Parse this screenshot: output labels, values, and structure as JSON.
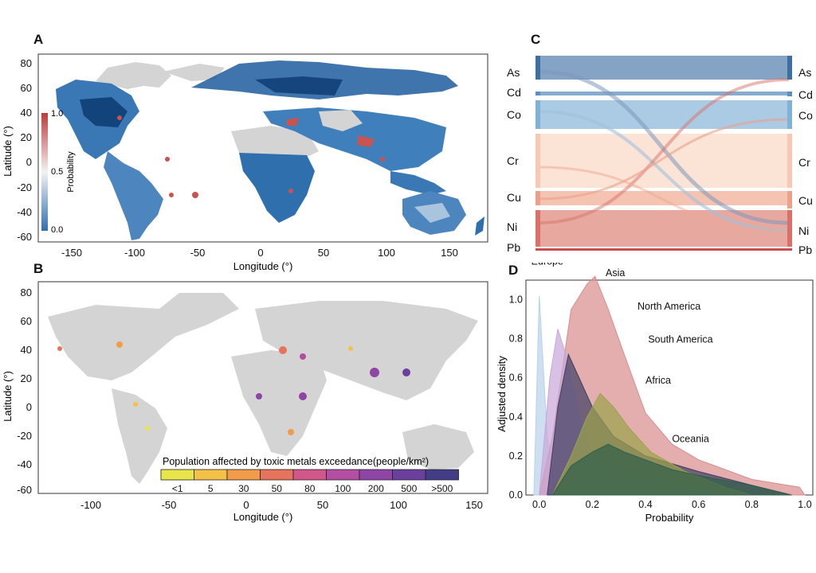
{
  "panels": {
    "A": {
      "letter": "A",
      "xlabel": "Longitude (°)",
      "ylabel": "Latitude (°)",
      "xticks": [
        "-150",
        "-100",
        "-50",
        "0",
        "50",
        "100",
        "150"
      ],
      "yticks": [
        "80",
        "60",
        "40",
        "20",
        "0",
        "-20",
        "-40",
        "-60"
      ],
      "colorbar": {
        "title": "Probability",
        "ticks": [
          "1.0",
          "0.5",
          "0.0"
        ]
      }
    },
    "B": {
      "letter": "B",
      "xlabel": "Longitude (°)",
      "ylabel": "Latitude (°)",
      "xticks": [
        "-100",
        "-50",
        "0",
        "50",
        "100",
        "150"
      ],
      "yticks": [
        "80",
        "60",
        "40",
        "20",
        "0",
        "-20",
        "-40",
        "-60"
      ],
      "legend": {
        "title": "Population affected by toxic metals exceedance(people/km²)",
        "labels": [
          "<1",
          "5",
          "30",
          "50",
          "80",
          "100",
          "200",
          "500",
          ">500"
        ],
        "colors": [
          "#e8e54a",
          "#f2c145",
          "#f19b4b",
          "#e6735c",
          "#d1568a",
          "#b44ea3",
          "#8f45a5",
          "#6a3f9e",
          "#433c87"
        ]
      }
    },
    "C": {
      "letter": "C",
      "nodes": [
        "As",
        "Cd",
        "Co",
        "Cr",
        "Cu",
        "Ni",
        "Pb"
      ],
      "colors": {
        "As": "#3d6fa0",
        "Cd": "#5b8fbf",
        "Co": "#7fb2d4",
        "Cr": "#f5c9b3",
        "Cu": "#eba08b",
        "Ni": "#d9716a",
        "Pb": "#c4514f"
      }
    },
    "D": {
      "letter": "D",
      "xlabel": "Probability",
      "ylabel": "Adjusted density",
      "xticks": [
        "0.0",
        "0.2",
        "0.4",
        "0.6",
        "0.8",
        "1.0"
      ],
      "yticks": [
        "1.0",
        "0.8",
        "0.6",
        "0.4",
        "0.2",
        "0.0"
      ],
      "regions": [
        "Europe",
        "Asia",
        "North America",
        "South America",
        "Africa",
        "Oceania"
      ]
    }
  },
  "chart_data": [
    {
      "type": "area",
      "x": [
        0.0,
        0.2,
        0.4,
        0.6,
        0.8,
        1.0
      ],
      "xlabel": "Probability",
      "ylabel": "Adjusted density",
      "ylim": [
        0,
        1.1
      ],
      "series": [
        {
          "name": "Europe",
          "color": "#b8d2ea",
          "values": [
            1.02,
            0.05,
            0.01,
            0.0,
            0.0,
            0.0
          ]
        },
        {
          "name": "Asia",
          "color": "#d98c8c",
          "values": [
            0.0,
            1.12,
            0.42,
            0.18,
            0.08,
            0.03
          ]
        },
        {
          "name": "North America",
          "color": "#c7a7d9",
          "values": [
            0.05,
            0.2,
            0.12,
            0.06,
            0.02,
            0.0
          ]
        },
        {
          "name": "South America",
          "color": "#3e3f63",
          "values": [
            0.0,
            0.45,
            0.2,
            0.12,
            0.05,
            0.0
          ]
        },
        {
          "name": "Africa",
          "color": "#9aa34a",
          "values": [
            0.0,
            0.52,
            0.34,
            0.1,
            0.03,
            0.0
          ]
        },
        {
          "name": "Oceania",
          "color": "#2f5f4a",
          "values": [
            0.0,
            0.26,
            0.21,
            0.1,
            0.05,
            0.0
          ]
        }
      ]
    }
  ]
}
